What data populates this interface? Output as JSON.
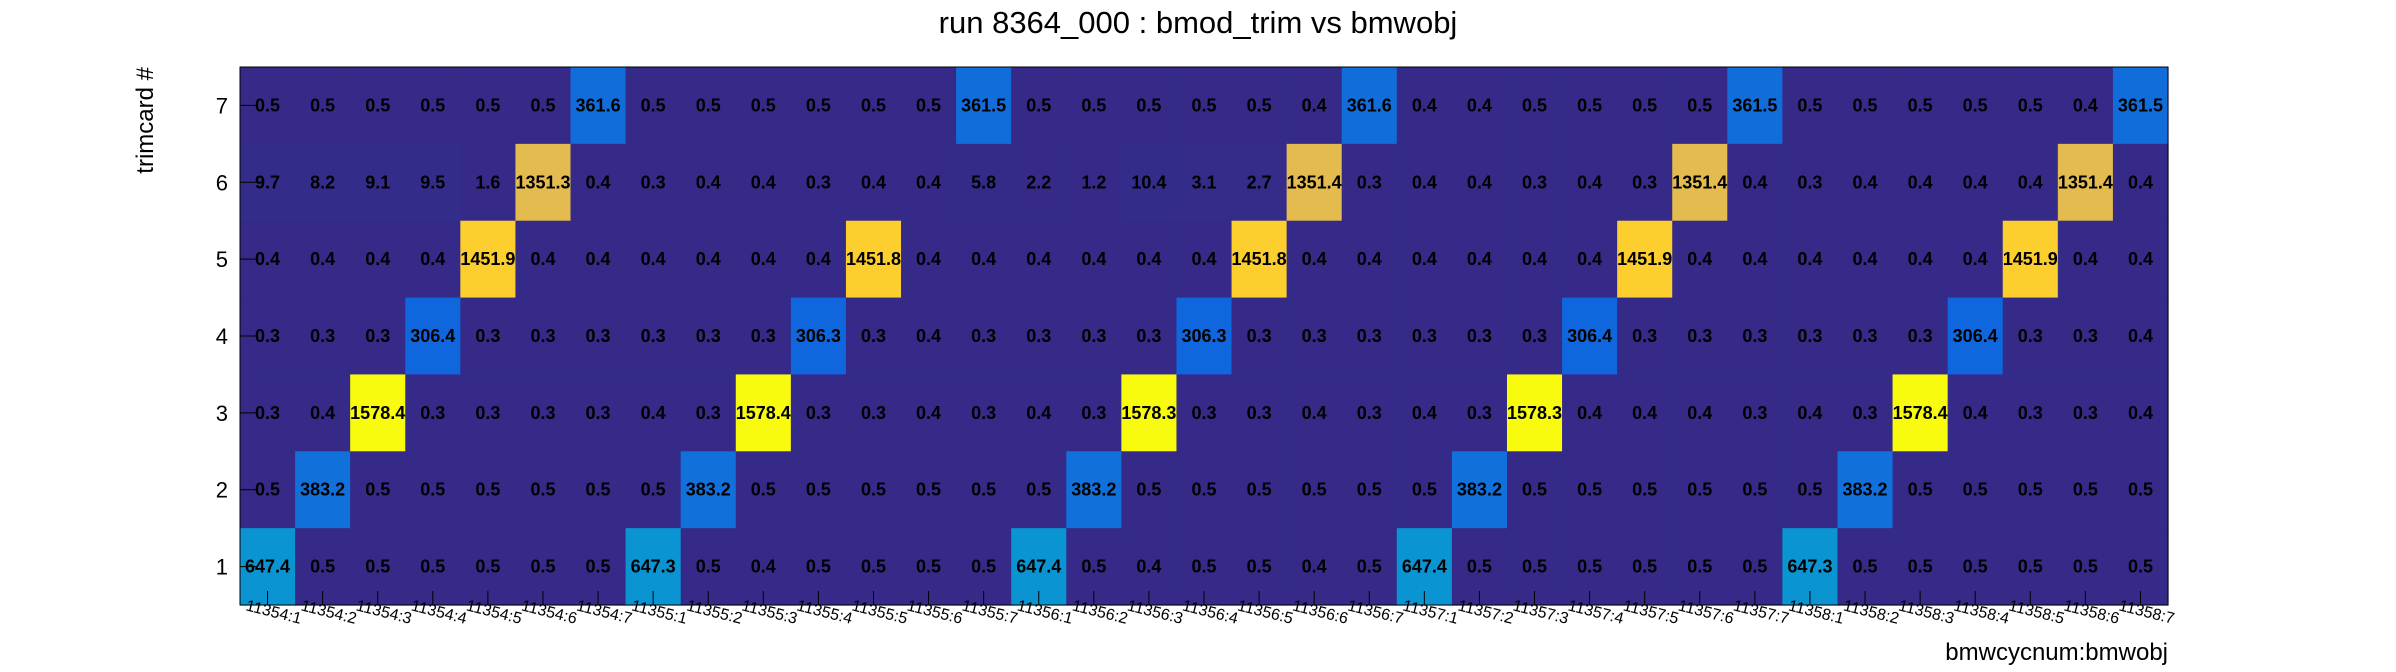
{
  "chart_data": {
    "type": "heatmap",
    "title": "run 8364_000 : bmod_trim vs bmwobj",
    "xlabel": "bmwcycnum:bmwobj",
    "ylabel": "trimcard #",
    "x_categories": [
      "11354:1",
      "11354:2",
      "11354:3",
      "11354:4",
      "11354:5",
      "11354:6",
      "11354:7",
      "11355:1",
      "11355:2",
      "11355:3",
      "11355:4",
      "11355:5",
      "11355:6",
      "11355:7",
      "11356:1",
      "11356:2",
      "11356:3",
      "11356:4",
      "11356:5",
      "11356:6",
      "11356:7",
      "11357:1",
      "11357:2",
      "11357:3",
      "11357:4",
      "11357:5",
      "11357:6",
      "11357:7",
      "11358:1",
      "11358:2",
      "11358:3",
      "11358:4",
      "11358:5",
      "11358:6",
      "11358:7"
    ],
    "y_categories": [
      "1",
      "2",
      "3",
      "4",
      "5",
      "6",
      "7"
    ],
    "rows": [
      {
        "y": "7",
        "values": [
          "0.5",
          "0.5",
          "0.5",
          "0.5",
          "0.5",
          "0.5",
          "361.6",
          "0.5",
          "0.5",
          "0.5",
          "0.5",
          "0.5",
          "0.5",
          "361.5",
          "0.5",
          "0.5",
          "0.5",
          "0.5",
          "0.5",
          "0.4",
          "361.6",
          "0.4",
          "0.4",
          "0.5",
          "0.5",
          "0.5",
          "0.5",
          "361.5",
          "0.5",
          "0.5",
          "0.5",
          "0.5",
          "0.5",
          "0.4",
          "361.5"
        ]
      },
      {
        "y": "6",
        "values": [
          "9.7",
          "8.2",
          "9.1",
          "9.5",
          "1.6",
          "1351.3",
          "0.4",
          "0.3",
          "0.4",
          "0.4",
          "0.3",
          "0.4",
          "0.4",
          "5.8",
          "2.2",
          "1.2",
          "10.4",
          "3.1",
          "2.7",
          "1351.4",
          "0.3",
          "0.4",
          "0.4",
          "0.3",
          "0.4",
          "0.3",
          "1351.4",
          "0.4",
          "0.3",
          "0.4",
          "0.4",
          "0.4",
          "0.4",
          "1351.4",
          "0.4"
        ]
      },
      {
        "y": "5",
        "values": [
          "0.4",
          "0.4",
          "0.4",
          "0.4",
          "1451.9",
          "0.4",
          "0.4",
          "0.4",
          "0.4",
          "0.4",
          "0.4",
          "1451.8",
          "0.4",
          "0.4",
          "0.4",
          "0.4",
          "0.4",
          "0.4",
          "1451.8",
          "0.4",
          "0.4",
          "0.4",
          "0.4",
          "0.4",
          "0.4",
          "1451.9",
          "0.4",
          "0.4",
          "0.4",
          "0.4",
          "0.4",
          "0.4",
          "1451.9",
          "0.4",
          "0.4"
        ]
      },
      {
        "y": "4",
        "values": [
          "0.3",
          "0.3",
          "0.3",
          "306.4",
          "0.3",
          "0.3",
          "0.3",
          "0.3",
          "0.3",
          "0.3",
          "306.3",
          "0.3",
          "0.4",
          "0.3",
          "0.3",
          "0.3",
          "0.3",
          "306.3",
          "0.3",
          "0.3",
          "0.3",
          "0.3",
          "0.3",
          "0.3",
          "306.4",
          "0.3",
          "0.3",
          "0.3",
          "0.3",
          "0.3",
          "0.3",
          "306.4",
          "0.3",
          "0.3",
          "0.4"
        ]
      },
      {
        "y": "3",
        "values": [
          "0.3",
          "0.4",
          "1578.4",
          "0.3",
          "0.3",
          "0.3",
          "0.3",
          "0.4",
          "0.3",
          "1578.4",
          "0.3",
          "0.3",
          "0.4",
          "0.3",
          "0.4",
          "0.3",
          "1578.3",
          "0.3",
          "0.3",
          "0.4",
          "0.3",
          "0.4",
          "0.3",
          "1578.3",
          "0.4",
          "0.4",
          "0.4",
          "0.3",
          "0.4",
          "0.3",
          "1578.4",
          "0.4",
          "0.3",
          "0.3",
          "0.4"
        ]
      },
      {
        "y": "2",
        "values": [
          "0.5",
          "383.2",
          "0.5",
          "0.5",
          "0.5",
          "0.5",
          "0.5",
          "0.5",
          "383.2",
          "0.5",
          "0.5",
          "0.5",
          "0.5",
          "0.5",
          "0.5",
          "383.2",
          "0.5",
          "0.5",
          "0.5",
          "0.5",
          "0.5",
          "0.5",
          "383.2",
          "0.5",
          "0.5",
          "0.5",
          "0.5",
          "0.5",
          "0.5",
          "383.2",
          "0.5",
          "0.5",
          "0.5",
          "0.5",
          "0.5"
        ]
      },
      {
        "y": "1",
        "values": [
          "647.4",
          "0.5",
          "0.5",
          "0.5",
          "0.5",
          "0.5",
          "0.5",
          "647.3",
          "0.5",
          "0.4",
          "0.5",
          "0.5",
          "0.5",
          "0.5",
          "647.4",
          "0.5",
          "0.4",
          "0.5",
          "0.5",
          "0.4",
          "0.5",
          "647.4",
          "0.5",
          "0.5",
          "0.5",
          "0.5",
          "0.5",
          "0.5",
          "647.3",
          "0.5",
          "0.5",
          "0.5",
          "0.5",
          "0.5",
          "0.5"
        ]
      }
    ]
  }
}
